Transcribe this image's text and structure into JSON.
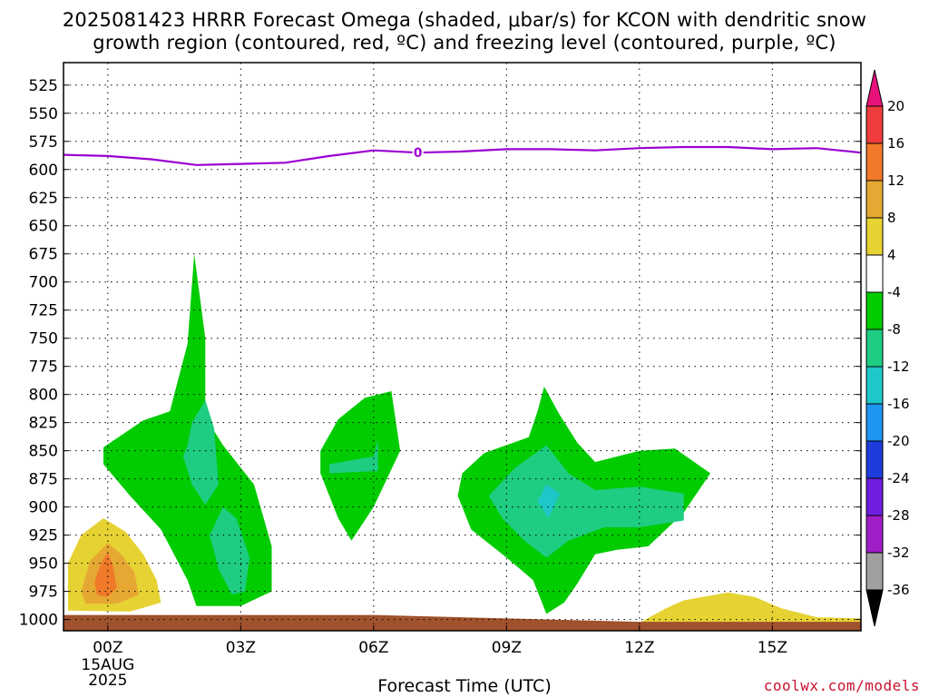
{
  "title_line1": "2025081423 HRRR Forecast Omega (shaded, μbar/s) for KCON with dendritic snow",
  "title_line2": "growth region (contoured, red, ºC) and freezing level (contoured, purple, ºC)",
  "credit": "coolwx.com/models",
  "chart_data": {
    "type": "time-height contour",
    "xlabel": "Forecast Time (UTC)",
    "x_ticks": [
      "00Z",
      "03Z",
      "06Z",
      "09Z",
      "12Z",
      "15Z"
    ],
    "x_first_sublabels": [
      "15AUG",
      "2025"
    ],
    "x_range_hours": [
      -1,
      17
    ],
    "y_scale": "pressure (reversed)",
    "y_ticks": [
      525,
      550,
      575,
      600,
      625,
      650,
      675,
      700,
      725,
      750,
      775,
      800,
      825,
      850,
      875,
      900,
      925,
      950,
      975,
      1000
    ],
    "y_range_hPa": [
      505,
      1010
    ],
    "grid": true,
    "colorbar": {
      "labels": [
        "20",
        "16",
        "12",
        "8",
        "4",
        "-4",
        "-8",
        "-12",
        "-16",
        "-20",
        "-24",
        "-28",
        "-32",
        "-36"
      ],
      "bands": [
        {
          "range": ">20",
          "color": "#e8137a"
        },
        {
          "range": "16 to 20",
          "color": "#f03c3c"
        },
        {
          "range": "12 to 16",
          "color": "#f07a2a"
        },
        {
          "range": "8 to 12",
          "color": "#e6a832"
        },
        {
          "range": "4 to 8",
          "color": "#e6d232"
        },
        {
          "range": "-4 to 4",
          "color": "#ffffff"
        },
        {
          "range": "-8 to -4",
          "color": "#00cc00"
        },
        {
          "range": "-12 to -8",
          "color": "#1ecc82"
        },
        {
          "range": "-16 to -12",
          "color": "#1ec8c8"
        },
        {
          "range": "-20 to -16",
          "color": "#1e96f0"
        },
        {
          "range": "-24 to -20",
          "color": "#1e3cdc"
        },
        {
          "range": "-28 to -24",
          "color": "#6e1edc"
        },
        {
          "range": "-32 to -28",
          "color": "#a01ec8"
        },
        {
          "range": "-36 to -32",
          "color": "#a0a0a0"
        },
        {
          "range": "<-36",
          "color": "#000000"
        }
      ]
    },
    "freezing_level": {
      "label": "0",
      "color": "#9b00d2",
      "hours": [
        -1,
        0,
        1,
        2,
        3,
        4,
        5,
        6,
        7,
        8,
        9,
        10,
        11,
        12,
        13,
        14,
        15,
        16,
        17
      ],
      "pressure_hPa": [
        587,
        588,
        591,
        596,
        595,
        594,
        588,
        583,
        585,
        584,
        582,
        582,
        583,
        581,
        580,
        580,
        582,
        581,
        585
      ]
    },
    "terrain_color": "#a0522d",
    "omega_regions": [
      {
        "color": "#00cc00",
        "points": [
          [
            -0.1,
            847
          ],
          [
            0.8,
            823
          ],
          [
            1.4,
            815
          ],
          [
            1.8,
            755
          ],
          [
            1.95,
            675
          ],
          [
            2.2,
            750
          ],
          [
            2.2,
            820
          ],
          [
            2.6,
            845
          ],
          [
            3.3,
            880
          ],
          [
            3.7,
            935
          ],
          [
            3.7,
            975
          ],
          [
            3.0,
            988
          ],
          [
            2.0,
            988
          ],
          [
            1.8,
            965
          ],
          [
            1.2,
            920
          ],
          [
            0.5,
            890
          ],
          [
            -0.1,
            862
          ]
        ]
      },
      {
        "color": "#1ecc82",
        "points": [
          [
            1.8,
            845
          ],
          [
            1.9,
            825
          ],
          [
            2.2,
            805
          ],
          [
            2.4,
            830
          ],
          [
            2.5,
            880
          ],
          [
            2.2,
            898
          ],
          [
            1.9,
            880
          ],
          [
            1.7,
            855
          ]
        ]
      },
      {
        "color": "#1ecc82",
        "points": [
          [
            2.3,
            925
          ],
          [
            2.6,
            900
          ],
          [
            2.9,
            910
          ],
          [
            3.2,
            945
          ],
          [
            3.1,
            975
          ],
          [
            2.8,
            978
          ],
          [
            2.5,
            955
          ]
        ]
      },
      {
        "color": "#00cc00",
        "points": [
          [
            4.8,
            850
          ],
          [
            5.2,
            822
          ],
          [
            5.8,
            803
          ],
          [
            6.4,
            797
          ],
          [
            6.6,
            850
          ],
          [
            6.0,
            900
          ],
          [
            5.5,
            930
          ],
          [
            5.2,
            910
          ],
          [
            4.8,
            870
          ]
        ]
      },
      {
        "color": "#1ecc82",
        "points": [
          [
            5.0,
            862
          ],
          [
            6.0,
            855
          ],
          [
            6.1,
            840
          ],
          [
            6.1,
            868
          ],
          [
            5.0,
            870
          ]
        ]
      },
      {
        "color": "#00cc00",
        "points": [
          [
            8.0,
            870
          ],
          [
            8.5,
            852
          ],
          [
            9.5,
            838
          ],
          [
            9.7,
            815
          ],
          [
            9.85,
            793
          ],
          [
            10.2,
            818
          ],
          [
            10.6,
            843
          ],
          [
            11.0,
            860
          ],
          [
            12.0,
            850
          ],
          [
            12.8,
            848
          ],
          [
            13.6,
            870
          ],
          [
            13.0,
            905
          ],
          [
            12.2,
            935
          ],
          [
            11.5,
            938
          ],
          [
            11.0,
            942
          ],
          [
            10.6,
            968
          ],
          [
            10.3,
            985
          ],
          [
            9.9,
            995
          ],
          [
            9.6,
            965
          ],
          [
            9.0,
            945
          ],
          [
            8.2,
            920
          ],
          [
            7.9,
            890
          ]
        ]
      },
      {
        "color": "#1ecc82",
        "points": [
          [
            8.6,
            890
          ],
          [
            9.2,
            865
          ],
          [
            9.9,
            845
          ],
          [
            10.4,
            870
          ],
          [
            11.0,
            885
          ],
          [
            12.0,
            882
          ],
          [
            13.0,
            888
          ],
          [
            13.0,
            912
          ],
          [
            12.0,
            918
          ],
          [
            11.2,
            918
          ],
          [
            10.4,
            930
          ],
          [
            9.9,
            945
          ],
          [
            9.4,
            930
          ],
          [
            8.9,
            910
          ]
        ]
      },
      {
        "color": "#1ec8c8",
        "points": [
          [
            9.7,
            895
          ],
          [
            9.9,
            880
          ],
          [
            10.2,
            888
          ],
          [
            9.95,
            910
          ]
        ]
      },
      {
        "color": "#e6d232",
        "points": [
          [
            -0.9,
            990
          ],
          [
            -0.9,
            950
          ],
          [
            -0.6,
            925
          ],
          [
            -0.1,
            910
          ],
          [
            0.4,
            922
          ],
          [
            0.8,
            942
          ],
          [
            1.1,
            965
          ],
          [
            1.2,
            985
          ],
          [
            0.5,
            993
          ],
          [
            -0.9,
            992
          ]
        ]
      },
      {
        "color": "#e6a832",
        "points": [
          [
            -0.6,
            975
          ],
          [
            -0.4,
            948
          ],
          [
            0.0,
            932
          ],
          [
            0.3,
            942
          ],
          [
            0.6,
            958
          ],
          [
            0.7,
            978
          ],
          [
            0.2,
            986
          ],
          [
            -0.5,
            986
          ]
        ]
      },
      {
        "color": "#f07a2a",
        "points": [
          [
            -0.3,
            966
          ],
          [
            -0.15,
            950
          ],
          [
            0.0,
            940
          ],
          [
            0.12,
            953
          ],
          [
            0.2,
            972
          ],
          [
            0.0,
            980
          ],
          [
            -0.25,
            978
          ]
        ]
      },
      {
        "color": "#e6d232",
        "points": [
          [
            12.0,
            1003
          ],
          [
            12.6,
            990
          ],
          [
            13.0,
            983
          ],
          [
            14.0,
            976
          ],
          [
            14.6,
            980
          ],
          [
            15.2,
            990
          ],
          [
            16.0,
            998
          ],
          [
            17.0,
            999
          ],
          [
            17.0,
            1005
          ],
          [
            12.0,
            1005
          ]
        ]
      }
    ]
  }
}
